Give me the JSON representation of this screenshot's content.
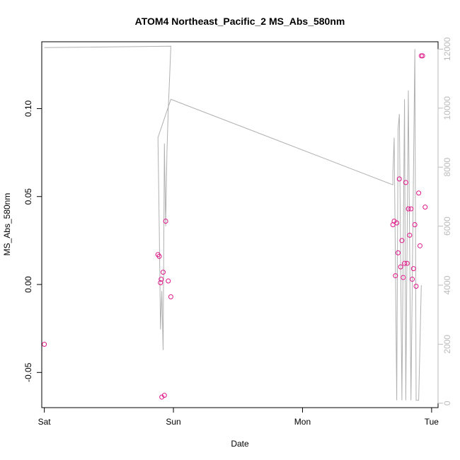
{
  "chart_data": {
    "type": "scatter",
    "title": "ATOM4 Northeast_Pacific_2 MS_Abs_580nm",
    "xlabel": "Date",
    "ylabel": "MS_Abs_580nm",
    "x_ticks": [
      "Sat",
      "Sun",
      "Mon",
      "Tue"
    ],
    "xlim_days": [
      -0.02,
      3.05
    ],
    "ylim": [
      -0.07,
      0.138
    ],
    "y_ticks": [
      -0.05,
      0.0,
      0.05,
      0.1
    ],
    "y_tick_labels": [
      "-0.05",
      "0.00",
      "0.05",
      "0.10"
    ],
    "y2lim": [
      -150,
      12250
    ],
    "y2_ticks": [
      0,
      2000,
      4000,
      6000,
      8000,
      10000,
      12000
    ],
    "y2_tick_labels": [
      "0",
      "2000",
      "4000",
      "6000",
      "8000",
      "10000",
      "12000"
    ],
    "colors": {
      "points": "#e0168a",
      "line": "#b0b0b0",
      "axis": "#000000",
      "secondary_axis": "#bbbbbb"
    },
    "points": [
      {
        "day": 0.0,
        "value": -0.034
      },
      {
        "day": 0.88,
        "value": 0.017
      },
      {
        "day": 0.89,
        "value": 0.016
      },
      {
        "day": 0.9,
        "value": 0.001
      },
      {
        "day": 0.905,
        "value": 0.003
      },
      {
        "day": 0.91,
        "value": -0.064
      },
      {
        "day": 0.92,
        "value": 0.007
      },
      {
        "day": 0.93,
        "value": -0.063
      },
      {
        "day": 0.94,
        "value": 0.036
      },
      {
        "day": 0.96,
        "value": 0.002
      },
      {
        "day": 0.98,
        "value": -0.007
      },
      {
        "day": 2.7,
        "value": 0.034
      },
      {
        "day": 2.71,
        "value": 0.036
      },
      {
        "day": 2.72,
        "value": 0.005
      },
      {
        "day": 2.73,
        "value": 0.035
      },
      {
        "day": 2.74,
        "value": 0.018
      },
      {
        "day": 2.75,
        "value": 0.06
      },
      {
        "day": 2.76,
        "value": 0.01
      },
      {
        "day": 2.77,
        "value": 0.025
      },
      {
        "day": 2.78,
        "value": 0.004
      },
      {
        "day": 2.79,
        "value": 0.012
      },
      {
        "day": 2.8,
        "value": 0.058
      },
      {
        "day": 2.81,
        "value": 0.012
      },
      {
        "day": 2.82,
        "value": 0.043
      },
      {
        "day": 2.83,
        "value": 0.028
      },
      {
        "day": 2.84,
        "value": 0.043
      },
      {
        "day": 2.85,
        "value": 0.003
      },
      {
        "day": 2.86,
        "value": 0.009
      },
      {
        "day": 2.87,
        "value": 0.034
      },
      {
        "day": 2.88,
        "value": -0.001
      },
      {
        "day": 2.9,
        "value": 0.052
      },
      {
        "day": 2.91,
        "value": 0.022
      },
      {
        "day": 2.92,
        "value": 0.13
      },
      {
        "day": 2.93,
        "value": 0.13
      },
      {
        "day": 2.95,
        "value": 0.044
      }
    ],
    "line_y2": [
      {
        "day": 0.0,
        "value": 12050
      },
      {
        "day": 0.98,
        "value": 12100
      },
      {
        "day": 0.97,
        "value": 11000
      },
      {
        "day": 0.96,
        "value": 10000
      },
      {
        "day": 0.95,
        "value": 8500
      },
      {
        "day": 0.94,
        "value": 6000
      },
      {
        "day": 0.93,
        "value": 8800
      },
      {
        "day": 0.92,
        "value": 1800
      },
      {
        "day": 0.91,
        "value": 3800
      },
      {
        "day": 0.9,
        "value": 2500
      },
      {
        "day": 0.89,
        "value": 6000
      },
      {
        "day": 0.88,
        "value": 9000
      },
      {
        "day": 0.98,
        "value": 10300
      },
      {
        "day": 2.7,
        "value": 7400
      },
      {
        "day": 2.7,
        "value": 7800
      },
      {
        "day": 2.71,
        "value": 9000
      },
      {
        "day": 2.73,
        "value": 100
      },
      {
        "day": 2.74,
        "value": 9300
      },
      {
        "day": 2.75,
        "value": 9800
      },
      {
        "day": 2.77,
        "value": 100
      },
      {
        "day": 2.79,
        "value": 10300
      },
      {
        "day": 2.8,
        "value": 100
      },
      {
        "day": 2.82,
        "value": 10600
      },
      {
        "day": 2.84,
        "value": 100
      },
      {
        "day": 2.87,
        "value": 12000
      },
      {
        "day": 2.88,
        "value": 100
      },
      {
        "day": 2.9,
        "value": 100
      },
      {
        "day": 2.92,
        "value": 4000
      }
    ]
  }
}
